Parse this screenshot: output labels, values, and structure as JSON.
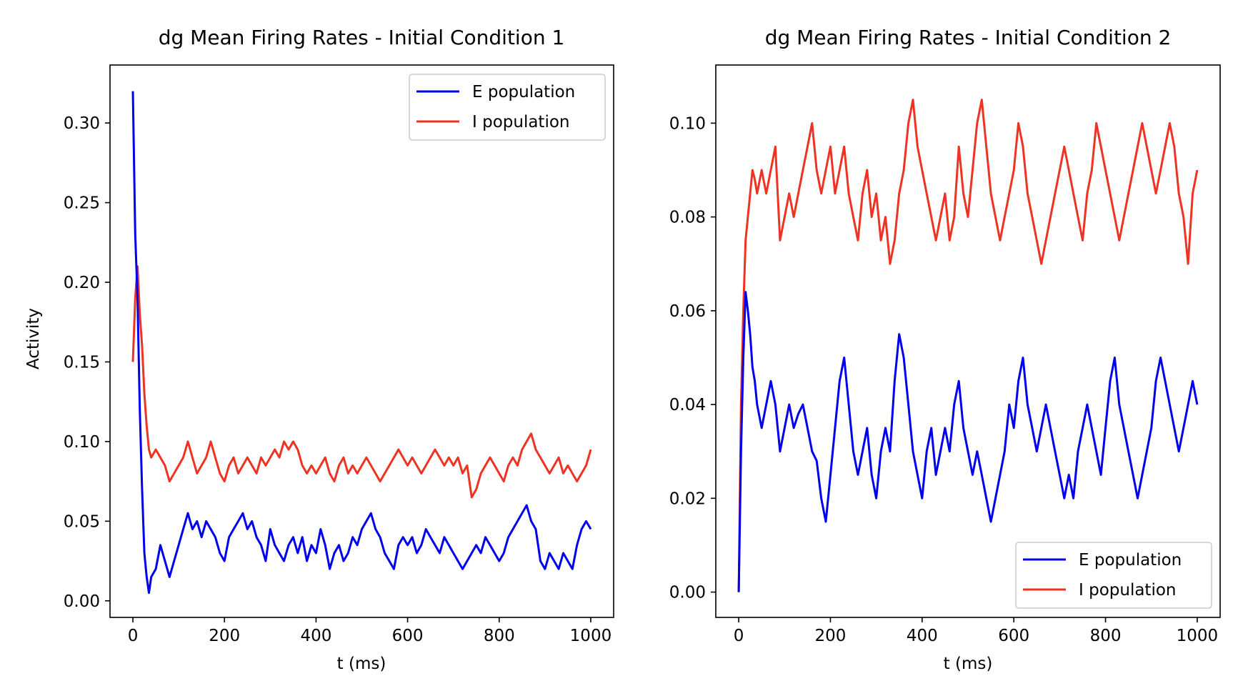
{
  "figure": {
    "background": "#ffffff"
  },
  "chart_data": [
    {
      "type": "line",
      "title": "dg Mean Firing Rates - Initial Condition 1",
      "xlabel": "t (ms)",
      "ylabel": "Activity",
      "xlim": [
        -50,
        1050
      ],
      "ylim": [
        -0.0104,
        0.3364
      ],
      "xticks": [
        0,
        200,
        400,
        600,
        800,
        1000
      ],
      "xtick_labels": [
        "0",
        "200",
        "400",
        "600",
        "800",
        "1000"
      ],
      "yticks": [
        0.0,
        0.05,
        0.1,
        0.15,
        0.2,
        0.25,
        0.3
      ],
      "ytick_labels": [
        "0.00",
        "0.05",
        "0.10",
        "0.15",
        "0.20",
        "0.25",
        "0.30"
      ],
      "grid": false,
      "legend_position": "upper right",
      "series": [
        {
          "name": "E population",
          "color": "#0000ee",
          "x": [
            0,
            5,
            10,
            15,
            20,
            25,
            30,
            35,
            40,
            50,
            60,
            70,
            80,
            90,
            100,
            110,
            120,
            130,
            140,
            150,
            160,
            170,
            180,
            190,
            200,
            210,
            220,
            230,
            240,
            250,
            260,
            270,
            280,
            290,
            300,
            310,
            320,
            330,
            340,
            350,
            360,
            370,
            380,
            390,
            400,
            410,
            420,
            430,
            440,
            450,
            460,
            470,
            480,
            490,
            500,
            510,
            520,
            530,
            540,
            550,
            560,
            570,
            580,
            590,
            600,
            610,
            620,
            630,
            640,
            650,
            660,
            670,
            680,
            690,
            700,
            710,
            720,
            730,
            740,
            750,
            760,
            770,
            780,
            790,
            800,
            810,
            820,
            830,
            840,
            850,
            860,
            870,
            880,
            890,
            900,
            910,
            920,
            930,
            940,
            950,
            960,
            970,
            980,
            990,
            1000
          ],
          "values": [
            0.32,
            0.23,
            0.19,
            0.12,
            0.07,
            0.03,
            0.015,
            0.005,
            0.015,
            0.02,
            0.035,
            0.025,
            0.015,
            0.025,
            0.035,
            0.045,
            0.055,
            0.045,
            0.05,
            0.04,
            0.05,
            0.045,
            0.04,
            0.03,
            0.025,
            0.04,
            0.045,
            0.05,
            0.055,
            0.045,
            0.05,
            0.04,
            0.035,
            0.025,
            0.045,
            0.035,
            0.03,
            0.025,
            0.035,
            0.04,
            0.03,
            0.04,
            0.025,
            0.035,
            0.03,
            0.045,
            0.035,
            0.02,
            0.03,
            0.035,
            0.025,
            0.03,
            0.04,
            0.035,
            0.045,
            0.05,
            0.055,
            0.045,
            0.04,
            0.03,
            0.025,
            0.02,
            0.035,
            0.04,
            0.035,
            0.04,
            0.03,
            0.035,
            0.045,
            0.04,
            0.035,
            0.03,
            0.04,
            0.035,
            0.03,
            0.025,
            0.02,
            0.025,
            0.03,
            0.035,
            0.03,
            0.04,
            0.035,
            0.03,
            0.025,
            0.03,
            0.04,
            0.045,
            0.05,
            0.055,
            0.06,
            0.05,
            0.045,
            0.025,
            0.02,
            0.03,
            0.025,
            0.02,
            0.03,
            0.025,
            0.02,
            0.035,
            0.045,
            0.05,
            0.045
          ]
        },
        {
          "name": "I population",
          "color": "#ee3322",
          "x": [
            0,
            5,
            10,
            15,
            20,
            25,
            30,
            35,
            40,
            50,
            60,
            70,
            80,
            90,
            100,
            110,
            120,
            130,
            140,
            150,
            160,
            170,
            180,
            190,
            200,
            210,
            220,
            230,
            240,
            250,
            260,
            270,
            280,
            290,
            300,
            310,
            320,
            330,
            340,
            350,
            360,
            370,
            380,
            390,
            400,
            410,
            420,
            430,
            440,
            450,
            460,
            470,
            480,
            490,
            500,
            510,
            520,
            530,
            540,
            550,
            560,
            570,
            580,
            590,
            600,
            610,
            620,
            630,
            640,
            650,
            660,
            670,
            680,
            690,
            700,
            710,
            720,
            730,
            740,
            750,
            760,
            770,
            780,
            790,
            800,
            810,
            820,
            830,
            840,
            850,
            860,
            870,
            880,
            890,
            900,
            910,
            920,
            930,
            940,
            950,
            960,
            970,
            980,
            990,
            1000
          ],
          "values": [
            0.15,
            0.19,
            0.21,
            0.18,
            0.16,
            0.13,
            0.11,
            0.095,
            0.09,
            0.095,
            0.09,
            0.085,
            0.075,
            0.08,
            0.085,
            0.09,
            0.1,
            0.09,
            0.08,
            0.085,
            0.09,
            0.1,
            0.09,
            0.08,
            0.075,
            0.085,
            0.09,
            0.08,
            0.085,
            0.09,
            0.085,
            0.08,
            0.09,
            0.085,
            0.09,
            0.095,
            0.09,
            0.1,
            0.095,
            0.1,
            0.095,
            0.085,
            0.08,
            0.085,
            0.08,
            0.085,
            0.09,
            0.08,
            0.075,
            0.085,
            0.09,
            0.08,
            0.085,
            0.08,
            0.085,
            0.09,
            0.085,
            0.08,
            0.075,
            0.08,
            0.085,
            0.09,
            0.095,
            0.09,
            0.085,
            0.09,
            0.085,
            0.08,
            0.085,
            0.09,
            0.095,
            0.09,
            0.085,
            0.09,
            0.085,
            0.09,
            0.08,
            0.085,
            0.065,
            0.07,
            0.08,
            0.085,
            0.09,
            0.085,
            0.08,
            0.075,
            0.085,
            0.09,
            0.085,
            0.095,
            0.1,
            0.105,
            0.095,
            0.09,
            0.085,
            0.08,
            0.085,
            0.09,
            0.08,
            0.085,
            0.08,
            0.075,
            0.08,
            0.085,
            0.095
          ]
        }
      ]
    },
    {
      "type": "line",
      "title": "dg Mean Firing Rates - Initial Condition 2",
      "xlabel": "t (ms)",
      "ylabel": "",
      "xlim": [
        -50,
        1050
      ],
      "ylim": [
        -0.0054,
        0.1124
      ],
      "xticks": [
        0,
        200,
        400,
        600,
        800,
        1000
      ],
      "xtick_labels": [
        "0",
        "200",
        "400",
        "600",
        "800",
        "1000"
      ],
      "yticks": [
        0.0,
        0.02,
        0.04,
        0.06,
        0.08,
        0.1
      ],
      "ytick_labels": [
        "0.00",
        "0.02",
        "0.04",
        "0.06",
        "0.08",
        "0.10"
      ],
      "grid": false,
      "legend_position": "lower right",
      "series": [
        {
          "name": "E population",
          "color": "#0000ee",
          "x": [
            0,
            5,
            10,
            15,
            20,
            25,
            30,
            35,
            40,
            50,
            60,
            70,
            80,
            90,
            100,
            110,
            120,
            130,
            140,
            150,
            160,
            170,
            180,
            190,
            200,
            210,
            220,
            230,
            240,
            250,
            260,
            270,
            280,
            290,
            300,
            310,
            320,
            330,
            340,
            350,
            360,
            370,
            380,
            390,
            400,
            410,
            420,
            430,
            440,
            450,
            460,
            470,
            480,
            490,
            500,
            510,
            520,
            530,
            540,
            550,
            560,
            570,
            580,
            590,
            600,
            610,
            620,
            630,
            640,
            650,
            660,
            670,
            680,
            690,
            700,
            710,
            720,
            730,
            740,
            750,
            760,
            770,
            780,
            790,
            800,
            810,
            820,
            830,
            840,
            850,
            860,
            870,
            880,
            890,
            900,
            910,
            920,
            930,
            940,
            950,
            960,
            970,
            980,
            990,
            1000
          ],
          "values": [
            0.0,
            0.03,
            0.05,
            0.064,
            0.06,
            0.055,
            0.048,
            0.045,
            0.04,
            0.035,
            0.04,
            0.045,
            0.04,
            0.03,
            0.035,
            0.04,
            0.035,
            0.038,
            0.04,
            0.035,
            0.03,
            0.028,
            0.02,
            0.015,
            0.025,
            0.035,
            0.045,
            0.05,
            0.04,
            0.03,
            0.025,
            0.03,
            0.035,
            0.025,
            0.02,
            0.03,
            0.035,
            0.03,
            0.045,
            0.055,
            0.05,
            0.04,
            0.03,
            0.025,
            0.02,
            0.03,
            0.035,
            0.025,
            0.03,
            0.035,
            0.03,
            0.04,
            0.045,
            0.035,
            0.03,
            0.025,
            0.03,
            0.025,
            0.02,
            0.015,
            0.02,
            0.025,
            0.03,
            0.04,
            0.035,
            0.045,
            0.05,
            0.04,
            0.035,
            0.03,
            0.035,
            0.04,
            0.035,
            0.03,
            0.025,
            0.02,
            0.025,
            0.02,
            0.03,
            0.035,
            0.04,
            0.035,
            0.03,
            0.025,
            0.035,
            0.045,
            0.05,
            0.04,
            0.035,
            0.03,
            0.025,
            0.02,
            0.025,
            0.03,
            0.035,
            0.045,
            0.05,
            0.045,
            0.04,
            0.035,
            0.03,
            0.035,
            0.04,
            0.045,
            0.04
          ]
        },
        {
          "name": "I population",
          "color": "#ee3322",
          "x": [
            0,
            5,
            10,
            15,
            20,
            25,
            30,
            35,
            40,
            50,
            60,
            70,
            80,
            90,
            100,
            110,
            120,
            130,
            140,
            150,
            160,
            170,
            180,
            190,
            200,
            210,
            220,
            230,
            240,
            250,
            260,
            270,
            280,
            290,
            300,
            310,
            320,
            330,
            340,
            350,
            360,
            370,
            380,
            390,
            400,
            410,
            420,
            430,
            440,
            450,
            460,
            470,
            480,
            490,
            500,
            510,
            520,
            530,
            540,
            550,
            560,
            570,
            580,
            590,
            600,
            610,
            620,
            630,
            640,
            650,
            660,
            670,
            680,
            690,
            700,
            710,
            720,
            730,
            740,
            750,
            760,
            770,
            780,
            790,
            800,
            810,
            820,
            830,
            840,
            850,
            860,
            870,
            880,
            890,
            900,
            910,
            920,
            930,
            940,
            950,
            960,
            970,
            980,
            990,
            1000
          ],
          "values": [
            0.0,
            0.04,
            0.06,
            0.075,
            0.08,
            0.085,
            0.09,
            0.088,
            0.085,
            0.09,
            0.085,
            0.09,
            0.095,
            0.075,
            0.08,
            0.085,
            0.08,
            0.085,
            0.09,
            0.095,
            0.1,
            0.09,
            0.085,
            0.09,
            0.095,
            0.085,
            0.09,
            0.095,
            0.085,
            0.08,
            0.075,
            0.085,
            0.09,
            0.08,
            0.085,
            0.075,
            0.08,
            0.07,
            0.075,
            0.085,
            0.09,
            0.1,
            0.105,
            0.095,
            0.09,
            0.085,
            0.08,
            0.075,
            0.08,
            0.085,
            0.075,
            0.08,
            0.095,
            0.085,
            0.08,
            0.09,
            0.1,
            0.105,
            0.095,
            0.085,
            0.08,
            0.075,
            0.08,
            0.085,
            0.09,
            0.1,
            0.095,
            0.085,
            0.08,
            0.075,
            0.07,
            0.075,
            0.08,
            0.085,
            0.09,
            0.095,
            0.09,
            0.085,
            0.08,
            0.075,
            0.085,
            0.09,
            0.1,
            0.095,
            0.09,
            0.085,
            0.08,
            0.075,
            0.08,
            0.085,
            0.09,
            0.095,
            0.1,
            0.095,
            0.09,
            0.085,
            0.09,
            0.095,
            0.1,
            0.095,
            0.085,
            0.08,
            0.07,
            0.085,
            0.09
          ]
        }
      ]
    }
  ]
}
